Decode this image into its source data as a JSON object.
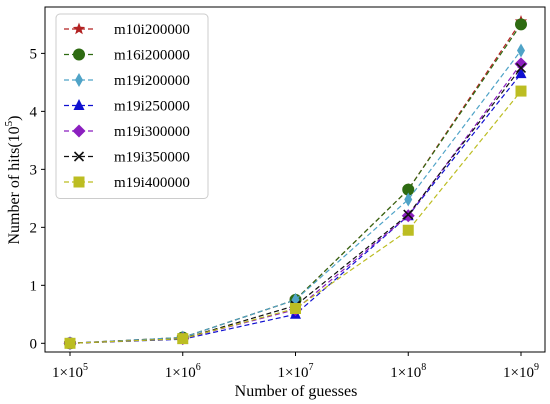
{
  "chart_data": {
    "type": "line",
    "title": "",
    "xlabel": "Number of guesses",
    "ylabel_main": "Number of hits",
    "ylabel_unit_base": "(10",
    "ylabel_unit_exp": "5",
    "ylabel_unit_close": ")",
    "xscale": "log",
    "x": [
      100000,
      1000000,
      10000000,
      100000000,
      1000000000
    ],
    "x_tick_labels": [
      {
        "base": "1×10",
        "exp": "5"
      },
      {
        "base": "1×10",
        "exp": "6"
      },
      {
        "base": "1×10",
        "exp": "7"
      },
      {
        "base": "1×10",
        "exp": "8"
      },
      {
        "base": "1×10",
        "exp": "9"
      }
    ],
    "ylim": [
      -0.15,
      5.8
    ],
    "y_ticks": [
      0,
      1,
      2,
      3,
      4,
      5
    ],
    "grid": false,
    "legend_position": "top-left",
    "series": [
      {
        "name": "m10i200000",
        "color": "#b22222",
        "marker": "star",
        "values": [
          0.0,
          0.1,
          0.75,
          2.65,
          5.55
        ]
      },
      {
        "name": "m16i200000",
        "color": "#2e6b12",
        "marker": "circle",
        "values": [
          0.0,
          0.1,
          0.75,
          2.65,
          5.5
        ]
      },
      {
        "name": "m19i200000",
        "color": "#4fa3c7",
        "marker": "thin-diamond",
        "values": [
          0.0,
          0.1,
          0.75,
          2.48,
          5.05
        ]
      },
      {
        "name": "m19i250000",
        "color": "#1010d0",
        "marker": "triangle",
        "values": [
          0.0,
          0.07,
          0.5,
          2.2,
          4.65
        ]
      },
      {
        "name": "m19i300000",
        "color": "#8b1fbf",
        "marker": "diamond",
        "values": [
          0.0,
          0.08,
          0.58,
          2.2,
          4.82
        ]
      },
      {
        "name": "m19i350000",
        "color": "#111111",
        "marker": "x",
        "values": [
          0.0,
          0.08,
          0.65,
          2.22,
          4.75
        ]
      },
      {
        "name": "m19i400000",
        "color": "#bcbd22",
        "marker": "square",
        "values": [
          0.0,
          0.08,
          0.6,
          1.95,
          4.35
        ]
      }
    ]
  }
}
